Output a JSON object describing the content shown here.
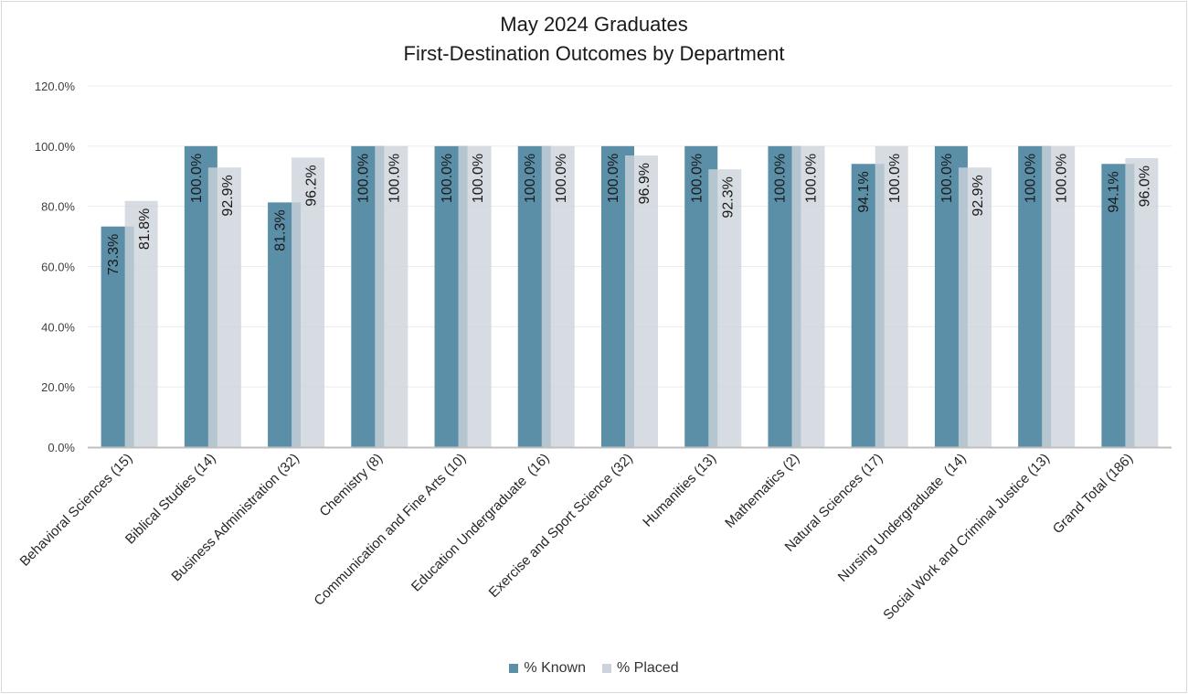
{
  "chart_data": {
    "type": "bar",
    "title": "May 2024 Graduates",
    "subtitle": "First-Destination Outcomes by Department",
    "categories": [
      "Behavioral Sciences (15)",
      "Biblical Studies (14)",
      "Business Administration (32)",
      "Chemistry (8)",
      "Communication and Fine Arts (10)",
      "Education Undergraduate  (16)",
      "Exercise and Sport Science (32)",
      "Humanities (13)",
      "Mathematics (2)",
      "Natural Sciences (17)",
      "Nursing Undergraduate  (14)",
      "Social Work and Criminal Justice (13)",
      "Grand Total (186)"
    ],
    "series": [
      {
        "name": "% Known",
        "color": "#5b8fa8",
        "values": [
          73.3,
          100.0,
          81.3,
          100.0,
          100.0,
          100.0,
          100.0,
          100.0,
          100.0,
          94.1,
          100.0,
          100.0,
          94.1
        ]
      },
      {
        "name": "% Placed",
        "color": "#ccd3da",
        "values": [
          81.8,
          92.9,
          96.2,
          100.0,
          100.0,
          100.0,
          96.9,
          92.3,
          100.0,
          100.0,
          92.9,
          100.0,
          96.0
        ]
      }
    ],
    "ylim": [
      0,
      120
    ],
    "yticks": [
      "0.0%",
      "20.0%",
      "40.0%",
      "60.0%",
      "80.0%",
      "100.0%",
      "120.0%"
    ],
    "grid": true,
    "legend": "bottom",
    "data_labels": true,
    "label_suffix": "%"
  }
}
